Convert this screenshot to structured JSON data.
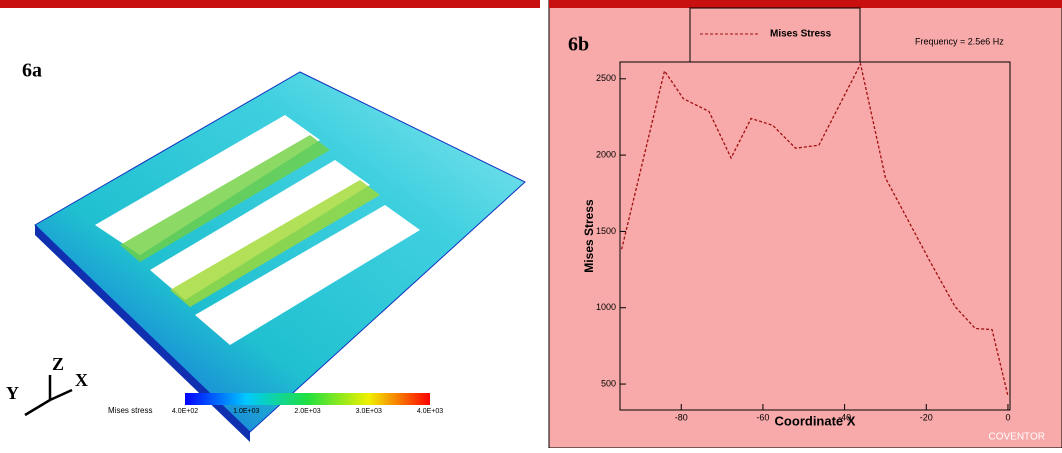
{
  "panel_a": {
    "label": "6a",
    "axes": {
      "z": "Z",
      "y": "Y",
      "x": "X"
    },
    "colorbar": {
      "title": "Mises stress",
      "labels": [
        "4.0E+02",
        "1.0E+03",
        "2.0E+03",
        "3.0E+03",
        "4.0E+03"
      ]
    }
  },
  "chart_data": {
    "type": "line",
    "panel_label": "6b",
    "annotation": "Frequency = 2.5e6 Hz",
    "watermark": "COVENTOR",
    "x_label": "Coordinate X",
    "y_label": "Mises Stress",
    "x": [
      -94.6,
      -84.1,
      -79.5,
      -73.2,
      -67.8,
      -62.9,
      -57.6,
      -52,
      -46.3,
      -36.1,
      -30,
      -19,
      -12.9,
      -8,
      -3.9,
      0
    ],
    "series": [
      {
        "name": "Mises Stress",
        "color": "#a01010",
        "values": [
          1383,
          2552,
          2370,
          2286,
          1981,
          2240,
          2195,
          2045,
          2065,
          2597,
          1851,
          1299,
          1006,
          864,
          857,
          422
        ]
      }
    ],
    "xlim": [
      -95,
      0.5
    ],
    "ylim": [
      330,
      2610
    ],
    "xticks": [
      -80,
      -60,
      -40,
      -20,
      0
    ],
    "yticks": [
      500,
      1000,
      1500,
      2000,
      2500
    ]
  }
}
